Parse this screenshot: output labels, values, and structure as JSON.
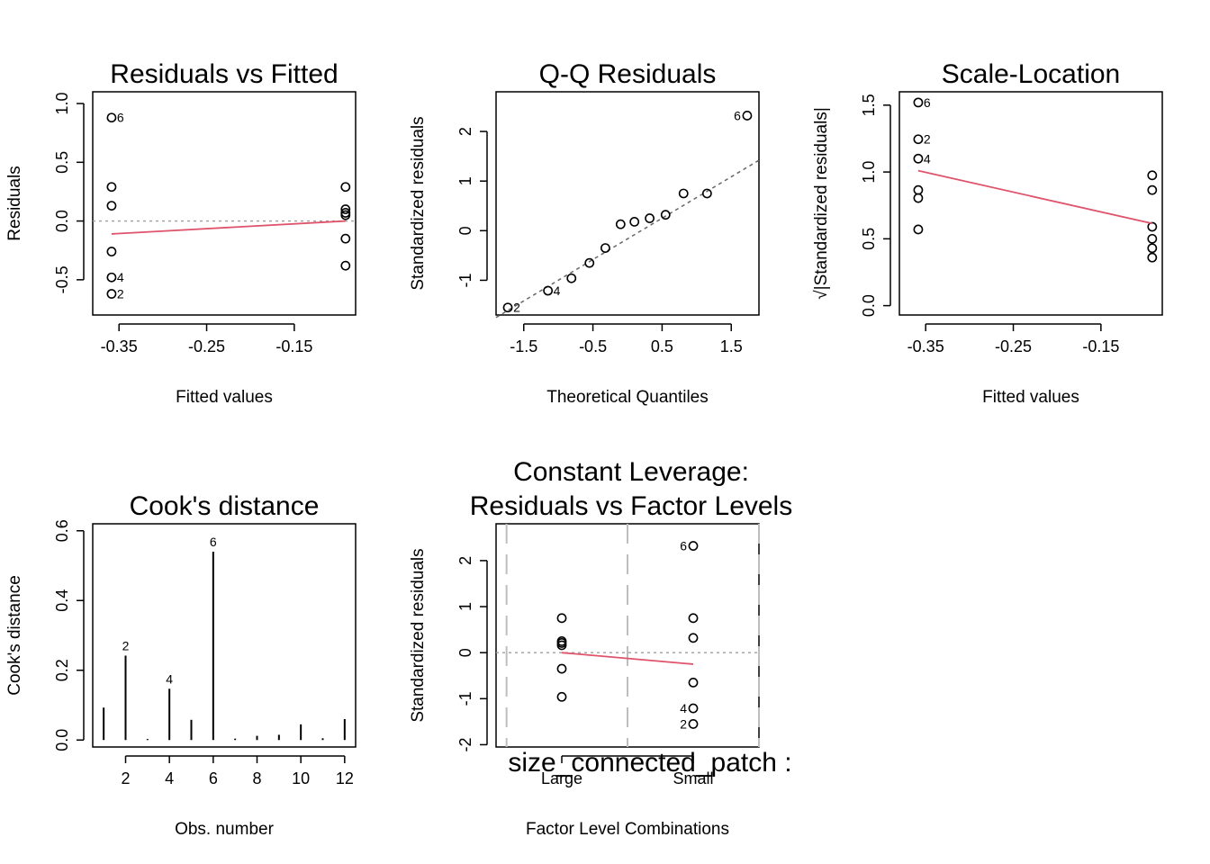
{
  "chart_data": [
    {
      "id": "rvf",
      "type": "scatter",
      "title": "Residuals vs Fitted",
      "xlabel": "Fitted values",
      "ylabel": "Residuals",
      "xlim": [
        -0.38,
        -0.08
      ],
      "ylim": [
        -0.8,
        1.1
      ],
      "xticks": [
        -0.35,
        -0.25,
        -0.15
      ],
      "xtick_labels": [
        "-0.35",
        "-0.25",
        "-0.15"
      ],
      "yticks": [
        -0.5,
        0.0,
        0.5,
        1.0
      ],
      "ytick_labels": [
        "-0.5",
        "0.0",
        "0.5",
        "1.0"
      ],
      "points": [
        {
          "x": -0.3585,
          "y": 0.88,
          "label": "6"
        },
        {
          "x": -0.3585,
          "y": 0.29
        },
        {
          "x": -0.3585,
          "y": 0.13
        },
        {
          "x": -0.3585,
          "y": -0.26
        },
        {
          "x": -0.3585,
          "y": -0.48,
          "label": "4"
        },
        {
          "x": -0.3585,
          "y": -0.62,
          "label": "2"
        },
        {
          "x": -0.0915,
          "y": 0.29
        },
        {
          "x": -0.0915,
          "y": 0.1
        },
        {
          "x": -0.0915,
          "y": 0.07
        },
        {
          "x": -0.0915,
          "y": 0.05
        },
        {
          "x": -0.0915,
          "y": -0.15
        },
        {
          "x": -0.0915,
          "y": -0.38
        }
      ],
      "smooth": [
        [
          -0.3585,
          -0.11
        ],
        [
          -0.0915,
          0.0
        ]
      ],
      "ref_line_y": 0
    },
    {
      "id": "qq",
      "type": "scatter",
      "title": "Q-Q Residuals",
      "xlabel": "Theoretical Quantiles",
      "ylabel": "Standardized residuals",
      "xlim": [
        -1.9,
        1.9
      ],
      "ylim": [
        -1.7,
        2.8
      ],
      "xticks": [
        -1.5,
        -0.5,
        0.5,
        1.5
      ],
      "xtick_labels": [
        "-1.5",
        "-0.5",
        "0.5",
        "1.5"
      ],
      "yticks": [
        -1,
        0,
        1,
        2
      ],
      "ytick_labels": [
        "-1",
        "0",
        "1",
        "2"
      ],
      "points": [
        {
          "x": -1.73,
          "y": -1.55,
          "label": "2"
        },
        {
          "x": -1.15,
          "y": -1.21,
          "label": "4"
        },
        {
          "x": -0.81,
          "y": -0.96
        },
        {
          "x": -0.55,
          "y": -0.65
        },
        {
          "x": -0.32,
          "y": -0.35
        },
        {
          "x": -0.1,
          "y": 0.13
        },
        {
          "x": 0.1,
          "y": 0.18
        },
        {
          "x": 0.32,
          "y": 0.25
        },
        {
          "x": 0.55,
          "y": 0.32
        },
        {
          "x": 0.81,
          "y": 0.75
        },
        {
          "x": 1.15,
          "y": 0.75
        },
        {
          "x": 1.73,
          "y": 2.32,
          "label": "6"
        }
      ],
      "qq_line": [
        [
          -1.9,
          -1.75
        ],
        [
          1.9,
          1.42
        ]
      ]
    },
    {
      "id": "sl",
      "type": "scatter",
      "title": "Scale-Location",
      "xlabel": "Fitted values",
      "ylabel": "√|Standardized residuals|",
      "xlim": [
        -0.38,
        -0.08
      ],
      "ylim": [
        -0.07,
        1.6
      ],
      "xticks": [
        -0.35,
        -0.25,
        -0.15
      ],
      "xtick_labels": [
        "-0.35",
        "-0.25",
        "-0.15"
      ],
      "yticks": [
        0.0,
        0.5,
        1.0,
        1.5
      ],
      "ytick_labels": [
        "0.0",
        "0.5",
        "1.0",
        "1.5"
      ],
      "points": [
        {
          "x": -0.3585,
          "y": 1.52,
          "label": "6"
        },
        {
          "x": -0.3585,
          "y": 1.245,
          "label": "2"
        },
        {
          "x": -0.3585,
          "y": 1.1,
          "label": "4"
        },
        {
          "x": -0.3585,
          "y": 0.865
        },
        {
          "x": -0.3585,
          "y": 0.805
        },
        {
          "x": -0.3585,
          "y": 0.57
        },
        {
          "x": -0.0915,
          "y": 0.975
        },
        {
          "x": -0.0915,
          "y": 0.865
        },
        {
          "x": -0.0915,
          "y": 0.59
        },
        {
          "x": -0.0915,
          "y": 0.5
        },
        {
          "x": -0.0915,
          "y": 0.43
        },
        {
          "x": -0.0915,
          "y": 0.36
        }
      ],
      "smooth": [
        [
          -0.3585,
          1.01
        ],
        [
          -0.0915,
          0.615
        ]
      ]
    },
    {
      "id": "cook",
      "type": "bar",
      "title": "Cook's distance",
      "xlabel": "Obs. number",
      "ylabel": "Cook's distance",
      "xlim": [
        0.5,
        12.5
      ],
      "ylim": [
        -0.02,
        0.62
      ],
      "xticks": [
        2,
        4,
        6,
        8,
        10,
        12
      ],
      "xtick_labels": [
        "2",
        "4",
        "6",
        "8",
        "10",
        "12"
      ],
      "yticks": [
        0.0,
        0.2,
        0.4,
        0.6
      ],
      "ytick_labels": [
        "0.0",
        "0.2",
        "0.4",
        "0.6"
      ],
      "categories": [
        1,
        2,
        3,
        4,
        5,
        6,
        7,
        8,
        9,
        10,
        11,
        12
      ],
      "values": [
        0.093,
        0.242,
        0.003,
        0.147,
        0.058,
        0.54,
        0.004,
        0.012,
        0.015,
        0.045,
        0.005,
        0.06
      ],
      "point_labels": {
        "2": "2",
        "4": "4",
        "6": "6"
      }
    },
    {
      "id": "rvl",
      "type": "scatter",
      "title": "Constant Leverage:",
      "title2": "Residuals vs Factor Levels",
      "xlabel": "Factor Level Combinations",
      "ylabel": "Standardized residuals",
      "factor_label": "size_connected_patch :",
      "xlim": [
        0.5,
        2.5
      ],
      "ylim": [
        -2.05,
        2.8
      ],
      "xticks": [
        1,
        2
      ],
      "xtick_labels": [
        "Large",
        "Small"
      ],
      "yticks": [
        -2,
        -1,
        0,
        1,
        2
      ],
      "ytick_labels": [
        "-2",
        "-1",
        "0",
        "1",
        "2"
      ],
      "level_lines_x": [
        0.58,
        1.5,
        2.5
      ],
      "points": [
        {
          "x": 1,
          "y": 0.75
        },
        {
          "x": 1,
          "y": 0.25
        },
        {
          "x": 1,
          "y": 0.21
        },
        {
          "x": 1,
          "y": 0.16
        },
        {
          "x": 1,
          "y": -0.35
        },
        {
          "x": 1,
          "y": -0.96
        },
        {
          "x": 2,
          "y": 2.32,
          "label": "6"
        },
        {
          "x": 2,
          "y": 0.75
        },
        {
          "x": 2,
          "y": 0.32
        },
        {
          "x": 2,
          "y": -0.65
        },
        {
          "x": 2,
          "y": -1.21,
          "label": "4"
        },
        {
          "x": 2,
          "y": -1.55,
          "label": "2"
        }
      ],
      "smooth": [
        [
          1,
          0.0
        ],
        [
          2,
          -0.25
        ]
      ],
      "ref_line_y": 0
    }
  ]
}
